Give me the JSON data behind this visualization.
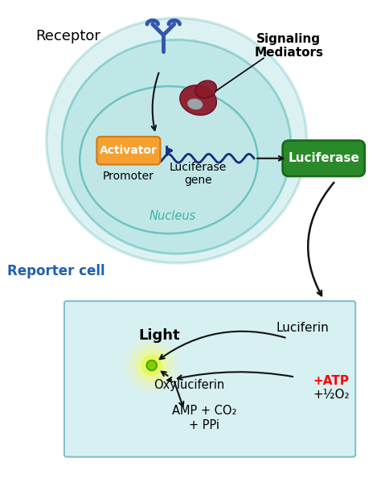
{
  "bg_color": "#ffffff",
  "outer_cell_face": "#60c8c8",
  "outer_cell_edge": "#30a0a0",
  "inner_cell_face": "#a0dada",
  "inner_cell_edge": "#40b0b0",
  "nucleus_face": "#c0e8e6",
  "nucleus_edge": "#50b8b5",
  "activator_face": "#f5a030",
  "activator_edge": "#d07818",
  "activator_text": "Activator",
  "luciferase_face": "#2a8a2a",
  "luciferase_edge": "#1a6a1a",
  "luciferase_text": "Luciferase",
  "dna_color": "#1a3080",
  "promoter_text": "Promoter",
  "luc_gene_text": "Luciferase\ngene",
  "nucleus_text": "Nucleus",
  "reporter_cell_text": "Reporter cell",
  "receptor_text": "Receptor",
  "receptor_color": "#3355aa",
  "signaling_text": "Signaling\nMediators",
  "protein_color": "#8b1a2a",
  "bottom_box_face": "#d0eef0",
  "bottom_box_edge": "#70b8c0",
  "light_text": "Light",
  "luciferin_text": "Luciferin",
  "oxyluciferin_text": "Oxyluciferin",
  "amp_text": "AMP + CO₂\n+ PPi",
  "atp_text": "+ATP",
  "o2_text": "+½O₂",
  "arrow_color": "#111111",
  "luc_gene_arrow_color": "#1a3080"
}
